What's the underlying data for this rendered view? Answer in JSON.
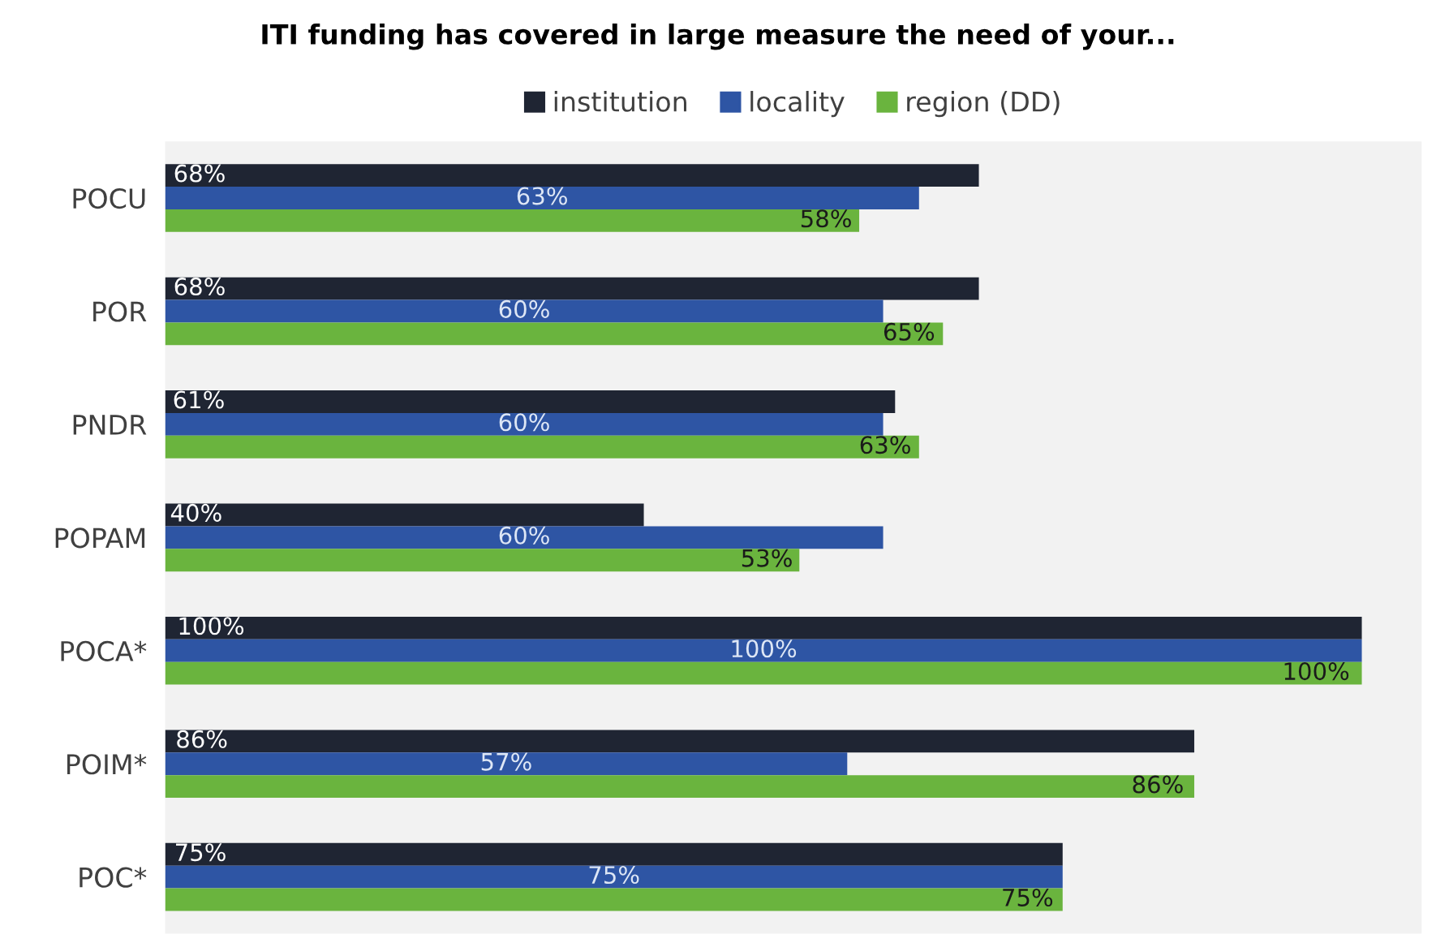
{
  "chart_data": {
    "type": "bar",
    "orientation": "horizontal",
    "title": "ITI funding has covered in large measure the need of your...",
    "categories": [
      "POCU",
      "POR",
      "PNDR",
      "POPAM",
      "POCA*",
      "POIM*",
      "POC*"
    ],
    "series": [
      {
        "name": "institution",
        "color": "#1f2533",
        "values": [
          68,
          68,
          61,
          40,
          100,
          86,
          75
        ],
        "value_labels": [
          "68%",
          "68%",
          "61%",
          "40%",
          "100%",
          "86%",
          "75%"
        ]
      },
      {
        "name": "locality",
        "color": "#2e55a4",
        "values": [
          63,
          60,
          60,
          60,
          100,
          57,
          75
        ],
        "value_labels": [
          "63%",
          "60%",
          "60%",
          "60%",
          "100%",
          "57%",
          "75%"
        ]
      },
      {
        "name": "region (DD)",
        "color": "#6ab43e",
        "values": [
          58,
          65,
          63,
          53,
          100,
          86,
          75
        ],
        "value_labels": [
          "58%",
          "65%",
          "63%",
          "53%",
          "100%",
          "86%",
          "75%"
        ]
      }
    ],
    "legend": "top",
    "grid": false
  }
}
